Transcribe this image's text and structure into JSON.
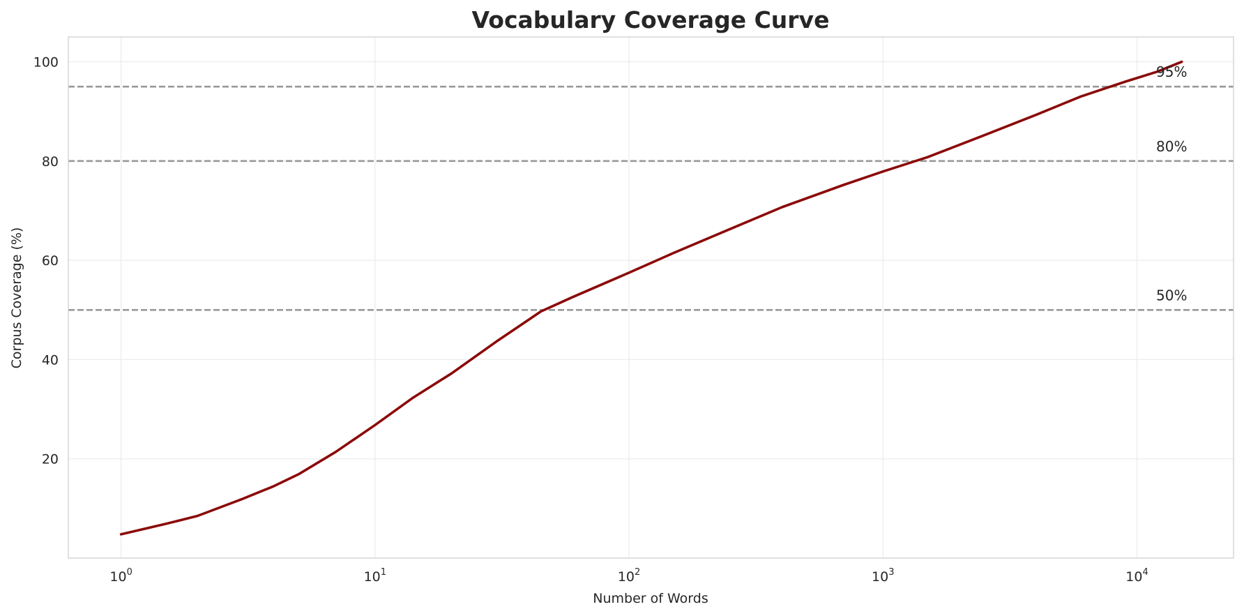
{
  "chart_data": {
    "type": "line",
    "title": "Vocabulary Coverage Curve",
    "xlabel": "Number of Words",
    "ylabel": "Corpus Coverage (%)",
    "xscale": "log",
    "xlim": [
      0.62,
      24000
    ],
    "ylim": [
      0,
      105
    ],
    "grid": true,
    "x_ticks": [
      {
        "value": 1,
        "base": "10",
        "exp": "0"
      },
      {
        "value": 10,
        "base": "10",
        "exp": "1"
      },
      {
        "value": 100,
        "base": "10",
        "exp": "2"
      },
      {
        "value": 1000,
        "base": "10",
        "exp": "3"
      },
      {
        "value": 10000,
        "base": "10",
        "exp": "4"
      }
    ],
    "y_ticks": [
      {
        "value": 20,
        "label": "20"
      },
      {
        "value": 40,
        "label": "40"
      },
      {
        "value": 60,
        "label": "60"
      },
      {
        "value": 80,
        "label": "80"
      },
      {
        "value": 100,
        "label": "100"
      }
    ],
    "reference_lines": [
      {
        "y": 50,
        "label": "50%"
      },
      {
        "y": 80,
        "label": "80%"
      },
      {
        "y": 95,
        "label": "95%"
      }
    ],
    "series": [
      {
        "color": "#8b0a0a",
        "points": [
          [
            1,
            4.8
          ],
          [
            1.5,
            6.9
          ],
          [
            2,
            8.5
          ],
          [
            3,
            11.9
          ],
          [
            4,
            14.5
          ],
          [
            5,
            16.9
          ],
          [
            7,
            21.4
          ],
          [
            10,
            26.8
          ],
          [
            14,
            32.2
          ],
          [
            20,
            37.2
          ],
          [
            30,
            43.6
          ],
          [
            45,
            49.7
          ],
          [
            60,
            52.6
          ],
          [
            100,
            57.5
          ],
          [
            150,
            61.5
          ],
          [
            250,
            66.3
          ],
          [
            400,
            70.7
          ],
          [
            700,
            75.2
          ],
          [
            1000,
            77.9
          ],
          [
            1500,
            80.8
          ],
          [
            2500,
            85.2
          ],
          [
            4000,
            89.3
          ],
          [
            6000,
            93.0
          ],
          [
            9000,
            96.0
          ],
          [
            12000,
            98.0
          ],
          [
            15000,
            100.0
          ]
        ]
      }
    ]
  }
}
